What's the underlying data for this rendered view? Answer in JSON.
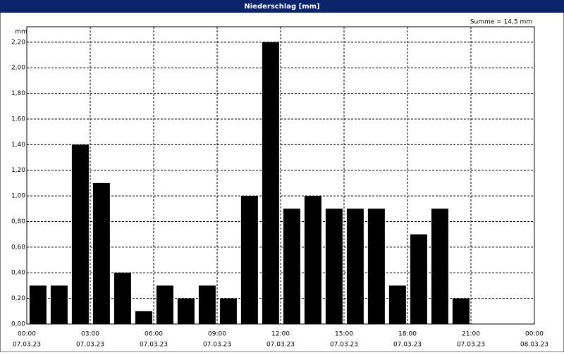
{
  "chart_data": {
    "type": "bar",
    "title": "Niederschlag [mm]",
    "y_label": "mm",
    "annotation": "Summe = 14,5 mm",
    "x": [
      0,
      1,
      2,
      3,
      4,
      5,
      6,
      7,
      8,
      9,
      10,
      11,
      12,
      13,
      14,
      15,
      16,
      17,
      18,
      19,
      20
    ],
    "values": [
      0.3,
      0.3,
      1.4,
      1.1,
      0.4,
      0.1,
      0.3,
      0.2,
      0.3,
      0.2,
      1.0,
      2.2,
      0.9,
      1.0,
      0.9,
      0.9,
      0.9,
      0.3,
      0.7,
      0.9,
      0.2
    ],
    "color": "#000000",
    "grid": true,
    "xlim": [
      0,
      24
    ],
    "xticks": [
      {
        "value": 0,
        "label": "00:00"
      },
      {
        "value": 3,
        "label": "03:00"
      },
      {
        "value": 6,
        "label": "06:00"
      },
      {
        "value": 9,
        "label": "09:00"
      },
      {
        "value": 12,
        "label": "12:00"
      },
      {
        "value": 15,
        "label": "15:00"
      },
      {
        "value": 18,
        "label": "18:00"
      },
      {
        "value": 21,
        "label": "21:00"
      },
      {
        "value": 24,
        "label": "00:00"
      }
    ],
    "xtick_dates": [
      "07.03.23",
      "07.03.23",
      "07.03.23",
      "07.03.23",
      "07.03.23",
      "07.03.23",
      "07.03.23",
      "07.03.23",
      "08.03.23"
    ],
    "ylim": [
      0,
      2.32
    ],
    "yticks": [
      {
        "value": 0,
        "label": "0,00"
      },
      {
        "value": 0.2,
        "label": "0,20"
      },
      {
        "value": 0.4,
        "label": "0,40"
      },
      {
        "value": 0.6,
        "label": "0,60"
      },
      {
        "value": 0.8,
        "label": "0,80"
      },
      {
        "value": 1.0,
        "label": "1,00"
      },
      {
        "value": 1.2,
        "label": "1,20"
      },
      {
        "value": 1.4,
        "label": "1,40"
      },
      {
        "value": 1.6,
        "label": "1,60"
      },
      {
        "value": 1.8,
        "label": "1,80"
      },
      {
        "value": 2.0,
        "label": "2,00"
      },
      {
        "value": 2.2,
        "label": "2,20"
      }
    ]
  }
}
